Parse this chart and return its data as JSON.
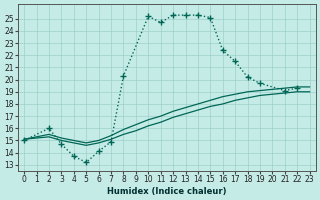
{
  "xlabel": "Humidex (Indice chaleur)",
  "bg_color": "#c5ebe6",
  "grid_color": "#9ecfca",
  "line_color": "#006655",
  "xlim": [
    -0.5,
    23.5
  ],
  "ylim": [
    12.5,
    26.2
  ],
  "yticks": [
    13,
    14,
    15,
    16,
    17,
    18,
    19,
    20,
    21,
    22,
    23,
    24,
    25
  ],
  "xticks": [
    0,
    1,
    2,
    3,
    4,
    5,
    6,
    7,
    8,
    9,
    10,
    11,
    12,
    13,
    14,
    15,
    16,
    17,
    18,
    19,
    20,
    21,
    22,
    23
  ],
  "main_x": [
    0,
    2,
    3,
    4,
    5,
    6,
    7,
    8,
    10,
    11,
    12,
    13,
    14,
    15,
    16,
    17,
    18,
    19,
    21,
    22
  ],
  "main_y": [
    15,
    16,
    14.7,
    13.7,
    13.2,
    14.1,
    14.9,
    20.3,
    25.2,
    24.7,
    25.3,
    25.3,
    25.3,
    25.1,
    22.4,
    21.5,
    20.2,
    19.7,
    19.1,
    19.3
  ],
  "line2_x": [
    0,
    2,
    3,
    4,
    5,
    6,
    7,
    8,
    9,
    10,
    11,
    12,
    13,
    14,
    15,
    16,
    17,
    18,
    19,
    20,
    21,
    22,
    23
  ],
  "line2_y": [
    15.1,
    15.3,
    15.0,
    14.8,
    14.6,
    14.8,
    15.1,
    15.5,
    15.8,
    16.2,
    16.5,
    16.9,
    17.2,
    17.5,
    17.8,
    18.0,
    18.3,
    18.5,
    18.7,
    18.8,
    18.9,
    19.0,
    19.0
  ],
  "line3_x": [
    0,
    2,
    3,
    4,
    5,
    6,
    7,
    8,
    9,
    10,
    11,
    12,
    13,
    14,
    15,
    16,
    17,
    18,
    19,
    20,
    21,
    22,
    23
  ],
  "line3_y": [
    15.1,
    15.5,
    15.2,
    15.0,
    14.8,
    15.0,
    15.4,
    15.9,
    16.3,
    16.7,
    17.0,
    17.4,
    17.7,
    18.0,
    18.3,
    18.6,
    18.8,
    19.0,
    19.1,
    19.2,
    19.3,
    19.4,
    19.4
  ]
}
